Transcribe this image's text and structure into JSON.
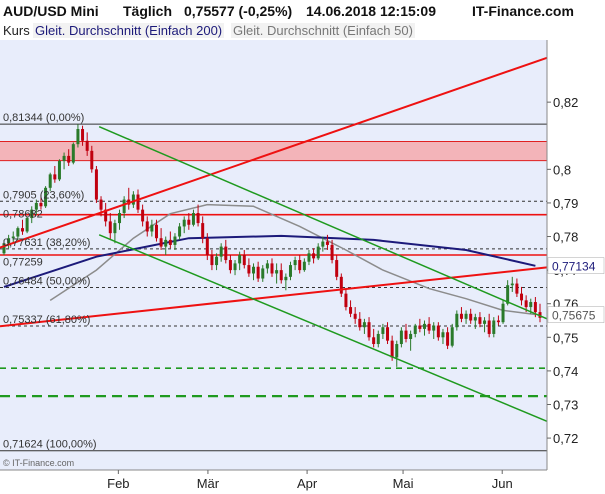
{
  "header": {
    "symbol": "AUD/USD Mini",
    "period": "Täglich",
    "quote": "0,75577 (-0,25%)",
    "datetime": "14.06.2018 12:15:09",
    "brand": "IT-Finance.com"
  },
  "legend": {
    "kurs": "Kurs",
    "sma200": "Gleit. Durchschnitt (Einfach 200)",
    "sma50": "Gleit. Durchschnitt (Einfach 50)"
  },
  "watermark": "© IT-Finance.com",
  "colors": {
    "plot_bg": "#e8edfb",
    "up": "#2a7a2a",
    "down": "#c0000f",
    "sma200": "#1c1a7a",
    "sma50": "#8c8c8c",
    "trend_red": "#ee1111",
    "channel_green": "#1f9a1f",
    "band": "#f4a9ad"
  },
  "chart_data": {
    "type": "candlestick",
    "ylim": [
      0.7105,
      0.8385
    ],
    "y_ticks": [
      0.72,
      0.73,
      0.74,
      0.75,
      0.76,
      0.77,
      0.78,
      0.79,
      0.8,
      0.82
    ],
    "y_tick_labels": [
      "0,72",
      "0,73",
      "0,74",
      "0,75",
      "0,76",
      "0,77",
      "0,78",
      "0,79",
      "0,8",
      "0,82"
    ],
    "x_labels": [
      {
        "label": "Feb",
        "date": "2018-02-01"
      },
      {
        "label": "Mär",
        "date": "2018-03-01"
      },
      {
        "label": "Apr",
        "date": "2018-04-01"
      },
      {
        "label": "Mai",
        "date": "2018-05-01"
      },
      {
        "label": "Jun",
        "date": "2018-06-01"
      }
    ],
    "x_range": [
      "2017-12-26",
      "2018-06-15"
    ],
    "fib_levels": [
      {
        "label": "0,81344 (0,00%)",
        "value": 0.81344
      },
      {
        "label": "0,7905 (23,60%)",
        "value": 0.7905
      },
      {
        "label": "0,77631 (38,20%)",
        "value": 0.77631
      },
      {
        "label": "0,76484 (50,00%)",
        "value": 0.76484
      },
      {
        "label": "0,75337 (61,80%)",
        "value": 0.75337
      },
      {
        "label": "0,71624 (100,00%)",
        "value": 0.71624
      }
    ],
    "extra_labels": [
      {
        "label": "0,78682",
        "value": 0.78682
      },
      {
        "label": "0,77259",
        "value": 0.77259
      }
    ],
    "resistance_zone": [
      0.8026,
      0.8083
    ],
    "horizontal_lines": [
      {
        "value": 0.7865,
        "color": "red"
      },
      {
        "value": 0.7745,
        "color": "red"
      },
      {
        "value": 0.7408,
        "color": "green",
        "style": "dashed"
      },
      {
        "value": 0.7325,
        "color": "green",
        "style": "dashed"
      }
    ],
    "trendlines": [
      {
        "color": "red",
        "from": [
          "2017-12-26",
          0.7767
        ],
        "to": [
          "2018-06-15",
          0.8332
        ]
      },
      {
        "color": "red",
        "from": [
          "2017-12-26",
          0.7533
        ],
        "to": [
          "2018-06-15",
          0.7708
        ]
      },
      {
        "color": "green",
        "from": [
          "2018-01-26",
          0.8127
        ],
        "to": [
          "2018-06-15",
          0.7555
        ]
      },
      {
        "color": "green",
        "from": [
          "2018-01-26",
          0.7805
        ],
        "to": [
          "2018-06-15",
          0.725
        ]
      }
    ],
    "last_labels": [
      {
        "label": "0,77134",
        "value": 0.77134,
        "series": "sma200"
      },
      {
        "label": "0,75675",
        "value": 0.75675,
        "series": "sma50"
      }
    ],
    "candles": [
      {
        "o": 0.775,
        "h": 0.779,
        "l": 0.7745,
        "c": 0.778
      },
      {
        "o": 0.778,
        "h": 0.7805,
        "l": 0.7765,
        "c": 0.7795
      },
      {
        "o": 0.7795,
        "h": 0.7815,
        "l": 0.778,
        "c": 0.78
      },
      {
        "o": 0.78,
        "h": 0.783,
        "l": 0.7785,
        "c": 0.7825
      },
      {
        "o": 0.7825,
        "h": 0.785,
        "l": 0.7805,
        "c": 0.7815
      },
      {
        "o": 0.7815,
        "h": 0.786,
        "l": 0.781,
        "c": 0.7855
      },
      {
        "o": 0.7855,
        "h": 0.789,
        "l": 0.784,
        "c": 0.788
      },
      {
        "o": 0.788,
        "h": 0.791,
        "l": 0.7865,
        "c": 0.79
      },
      {
        "o": 0.79,
        "h": 0.7925,
        "l": 0.788,
        "c": 0.789
      },
      {
        "o": 0.789,
        "h": 0.795,
        "l": 0.7885,
        "c": 0.7945
      },
      {
        "o": 0.7945,
        "h": 0.799,
        "l": 0.7935,
        "c": 0.7985
      },
      {
        "o": 0.7985,
        "h": 0.801,
        "l": 0.796,
        "c": 0.797
      },
      {
        "o": 0.797,
        "h": 0.803,
        "l": 0.7965,
        "c": 0.8025
      },
      {
        "o": 0.8025,
        "h": 0.805,
        "l": 0.8,
        "c": 0.804
      },
      {
        "o": 0.804,
        "h": 0.806,
        "l": 0.801,
        "c": 0.802
      },
      {
        "o": 0.802,
        "h": 0.808,
        "l": 0.8015,
        "c": 0.8075
      },
      {
        "o": 0.8075,
        "h": 0.8134,
        "l": 0.8065,
        "c": 0.812
      },
      {
        "o": 0.812,
        "h": 0.813,
        "l": 0.807,
        "c": 0.8085
      },
      {
        "o": 0.8085,
        "h": 0.811,
        "l": 0.804,
        "c": 0.8055
      },
      {
        "o": 0.8055,
        "h": 0.807,
        "l": 0.799,
        "c": 0.8
      },
      {
        "o": 0.8,
        "h": 0.801,
        "l": 0.79,
        "c": 0.791
      },
      {
        "o": 0.791,
        "h": 0.792,
        "l": 0.786,
        "c": 0.788
      },
      {
        "o": 0.788,
        "h": 0.79,
        "l": 0.783,
        "c": 0.7845
      },
      {
        "o": 0.7845,
        "h": 0.787,
        "l": 0.779,
        "c": 0.781
      },
      {
        "o": 0.781,
        "h": 0.785,
        "l": 0.778,
        "c": 0.784
      },
      {
        "o": 0.784,
        "h": 0.788,
        "l": 0.782,
        "c": 0.787
      },
      {
        "o": 0.787,
        "h": 0.792,
        "l": 0.7855,
        "c": 0.791
      },
      {
        "o": 0.791,
        "h": 0.7945,
        "l": 0.788,
        "c": 0.7895
      },
      {
        "o": 0.7895,
        "h": 0.7935,
        "l": 0.7885,
        "c": 0.7925
      },
      {
        "o": 0.7925,
        "h": 0.794,
        "l": 0.787,
        "c": 0.788
      },
      {
        "o": 0.788,
        "h": 0.7895,
        "l": 0.783,
        "c": 0.7845
      },
      {
        "o": 0.7845,
        "h": 0.786,
        "l": 0.78,
        "c": 0.7815
      },
      {
        "o": 0.7815,
        "h": 0.785,
        "l": 0.78,
        "c": 0.7835
      },
      {
        "o": 0.7835,
        "h": 0.785,
        "l": 0.7785,
        "c": 0.7795
      },
      {
        "o": 0.7795,
        "h": 0.7825,
        "l": 0.776,
        "c": 0.777
      },
      {
        "o": 0.777,
        "h": 0.78,
        "l": 0.7745,
        "c": 0.779
      },
      {
        "o": 0.779,
        "h": 0.7815,
        "l": 0.7765,
        "c": 0.7775
      },
      {
        "o": 0.7775,
        "h": 0.781,
        "l": 0.776,
        "c": 0.78
      },
      {
        "o": 0.78,
        "h": 0.784,
        "l": 0.779,
        "c": 0.783
      },
      {
        "o": 0.783,
        "h": 0.786,
        "l": 0.781,
        "c": 0.785
      },
      {
        "o": 0.785,
        "h": 0.787,
        "l": 0.782,
        "c": 0.7835
      },
      {
        "o": 0.7835,
        "h": 0.788,
        "l": 0.783,
        "c": 0.787
      },
      {
        "o": 0.787,
        "h": 0.7895,
        "l": 0.783,
        "c": 0.784
      },
      {
        "o": 0.784,
        "h": 0.786,
        "l": 0.778,
        "c": 0.7795
      },
      {
        "o": 0.7795,
        "h": 0.781,
        "l": 0.773,
        "c": 0.7745
      },
      {
        "o": 0.7745,
        "h": 0.776,
        "l": 0.77,
        "c": 0.7715
      },
      {
        "o": 0.7715,
        "h": 0.775,
        "l": 0.77,
        "c": 0.774
      },
      {
        "o": 0.774,
        "h": 0.778,
        "l": 0.7725,
        "c": 0.777
      },
      {
        "o": 0.777,
        "h": 0.779,
        "l": 0.772,
        "c": 0.773
      },
      {
        "o": 0.773,
        "h": 0.7745,
        "l": 0.769,
        "c": 0.77
      },
      {
        "o": 0.77,
        "h": 0.773,
        "l": 0.7685,
        "c": 0.772
      },
      {
        "o": 0.772,
        "h": 0.7755,
        "l": 0.77,
        "c": 0.7745
      },
      {
        "o": 0.7745,
        "h": 0.776,
        "l": 0.7705,
        "c": 0.7715
      },
      {
        "o": 0.7715,
        "h": 0.7735,
        "l": 0.768,
        "c": 0.769
      },
      {
        "o": 0.769,
        "h": 0.772,
        "l": 0.767,
        "c": 0.771
      },
      {
        "o": 0.771,
        "h": 0.7725,
        "l": 0.7665,
        "c": 0.7675
      },
      {
        "o": 0.7675,
        "h": 0.7715,
        "l": 0.7665,
        "c": 0.7705
      },
      {
        "o": 0.7705,
        "h": 0.773,
        "l": 0.769,
        "c": 0.772
      },
      {
        "o": 0.772,
        "h": 0.7735,
        "l": 0.768,
        "c": 0.769
      },
      {
        "o": 0.769,
        "h": 0.772,
        "l": 0.766,
        "c": 0.77
      },
      {
        "o": 0.77,
        "h": 0.772,
        "l": 0.766,
        "c": 0.767
      },
      {
        "o": 0.767,
        "h": 0.769,
        "l": 0.764,
        "c": 0.768
      },
      {
        "o": 0.768,
        "h": 0.7725,
        "l": 0.767,
        "c": 0.7715
      },
      {
        "o": 0.7715,
        "h": 0.774,
        "l": 0.77,
        "c": 0.773
      },
      {
        "o": 0.773,
        "h": 0.7745,
        "l": 0.769,
        "c": 0.77
      },
      {
        "o": 0.77,
        "h": 0.7735,
        "l": 0.7695,
        "c": 0.7725
      },
      {
        "o": 0.7725,
        "h": 0.776,
        "l": 0.7715,
        "c": 0.775
      },
      {
        "o": 0.775,
        "h": 0.7765,
        "l": 0.772,
        "c": 0.7735
      },
      {
        "o": 0.7735,
        "h": 0.778,
        "l": 0.773,
        "c": 0.777
      },
      {
        "o": 0.777,
        "h": 0.78,
        "l": 0.7755,
        "c": 0.7785
      },
      {
        "o": 0.7785,
        "h": 0.7805,
        "l": 0.776,
        "c": 0.7775
      },
      {
        "o": 0.7775,
        "h": 0.779,
        "l": 0.772,
        "c": 0.773
      },
      {
        "o": 0.773,
        "h": 0.7745,
        "l": 0.767,
        "c": 0.768
      },
      {
        "o": 0.768,
        "h": 0.769,
        "l": 0.762,
        "c": 0.763
      },
      {
        "o": 0.763,
        "h": 0.7645,
        "l": 0.758,
        "c": 0.759
      },
      {
        "o": 0.759,
        "h": 0.761,
        "l": 0.756,
        "c": 0.757
      },
      {
        "o": 0.757,
        "h": 0.759,
        "l": 0.754,
        "c": 0.7555
      },
      {
        "o": 0.7555,
        "h": 0.7575,
        "l": 0.752,
        "c": 0.753
      },
      {
        "o": 0.753,
        "h": 0.7555,
        "l": 0.751,
        "c": 0.7545
      },
      {
        "o": 0.7545,
        "h": 0.756,
        "l": 0.749,
        "c": 0.75
      },
      {
        "o": 0.75,
        "h": 0.7525,
        "l": 0.747,
        "c": 0.748
      },
      {
        "o": 0.748,
        "h": 0.752,
        "l": 0.747,
        "c": 0.751
      },
      {
        "o": 0.751,
        "h": 0.754,
        "l": 0.7495,
        "c": 0.753
      },
      {
        "o": 0.753,
        "h": 0.7545,
        "l": 0.748,
        "c": 0.749
      },
      {
        "o": 0.749,
        "h": 0.7505,
        "l": 0.743,
        "c": 0.744
      },
      {
        "o": 0.744,
        "h": 0.749,
        "l": 0.7412,
        "c": 0.748
      },
      {
        "o": 0.748,
        "h": 0.753,
        "l": 0.747,
        "c": 0.752
      },
      {
        "o": 0.752,
        "h": 0.754,
        "l": 0.7485,
        "c": 0.7495
      },
      {
        "o": 0.7495,
        "h": 0.752,
        "l": 0.746,
        "c": 0.751
      },
      {
        "o": 0.751,
        "h": 0.754,
        "l": 0.75,
        "c": 0.7535
      },
      {
        "o": 0.7535,
        "h": 0.7555,
        "l": 0.7515,
        "c": 0.7525
      },
      {
        "o": 0.7525,
        "h": 0.755,
        "l": 0.7505,
        "c": 0.754
      },
      {
        "o": 0.754,
        "h": 0.756,
        "l": 0.751,
        "c": 0.752
      },
      {
        "o": 0.752,
        "h": 0.7545,
        "l": 0.7495,
        "c": 0.7535
      },
      {
        "o": 0.7535,
        "h": 0.7545,
        "l": 0.749,
        "c": 0.75
      },
      {
        "o": 0.75,
        "h": 0.7525,
        "l": 0.748,
        "c": 0.7515
      },
      {
        "o": 0.7515,
        "h": 0.753,
        "l": 0.7465,
        "c": 0.7475
      },
      {
        "o": 0.7475,
        "h": 0.754,
        "l": 0.747,
        "c": 0.753
      },
      {
        "o": 0.753,
        "h": 0.758,
        "l": 0.752,
        "c": 0.757
      },
      {
        "o": 0.757,
        "h": 0.759,
        "l": 0.7545,
        "c": 0.7555
      },
      {
        "o": 0.7555,
        "h": 0.758,
        "l": 0.754,
        "c": 0.757
      },
      {
        "o": 0.757,
        "h": 0.7585,
        "l": 0.754,
        "c": 0.755
      },
      {
        "o": 0.755,
        "h": 0.757,
        "l": 0.7525,
        "c": 0.756
      },
      {
        "o": 0.756,
        "h": 0.7575,
        "l": 0.753,
        "c": 0.754
      },
      {
        "o": 0.754,
        "h": 0.756,
        "l": 0.7515,
        "c": 0.755
      },
      {
        "o": 0.755,
        "h": 0.757,
        "l": 0.75,
        "c": 0.751
      },
      {
        "o": 0.751,
        "h": 0.756,
        "l": 0.75,
        "c": 0.755
      },
      {
        "o": 0.755,
        "h": 0.7565,
        "l": 0.7535,
        "c": 0.7545
      },
      {
        "o": 0.7545,
        "h": 0.761,
        "l": 0.754,
        "c": 0.76
      },
      {
        "o": 0.76,
        "h": 0.767,
        "l": 0.7595,
        "c": 0.7655
      },
      {
        "o": 0.7655,
        "h": 0.768,
        "l": 0.7635,
        "c": 0.766
      },
      {
        "o": 0.766,
        "h": 0.7675,
        "l": 0.762,
        "c": 0.763
      },
      {
        "o": 0.763,
        "h": 0.765,
        "l": 0.7595,
        "c": 0.761
      },
      {
        "o": 0.761,
        "h": 0.7625,
        "l": 0.7575,
        "c": 0.759
      },
      {
        "o": 0.759,
        "h": 0.7615,
        "l": 0.757,
        "c": 0.7605
      },
      {
        "o": 0.7605,
        "h": 0.762,
        "l": 0.756,
        "c": 0.7575
      },
      {
        "o": 0.7575,
        "h": 0.76,
        "l": 0.7545,
        "c": 0.7558
      }
    ],
    "sma200": [
      [
        0,
        0.765
      ],
      [
        20,
        0.774
      ],
      [
        40,
        0.7795
      ],
      [
        60,
        0.7802
      ],
      [
        80,
        0.779
      ],
      [
        100,
        0.776
      ],
      [
        115,
        0.7713
      ]
    ],
    "sma50": [
      [
        10,
        0.761
      ],
      [
        20,
        0.77
      ],
      [
        28,
        0.7795
      ],
      [
        36,
        0.7868
      ],
      [
        44,
        0.7895
      ],
      [
        54,
        0.789
      ],
      [
        64,
        0.783
      ],
      [
        74,
        0.776
      ],
      [
        82,
        0.77
      ],
      [
        92,
        0.7645
      ],
      [
        100,
        0.7615
      ],
      [
        108,
        0.758
      ],
      [
        115,
        0.7568
      ]
    ]
  }
}
